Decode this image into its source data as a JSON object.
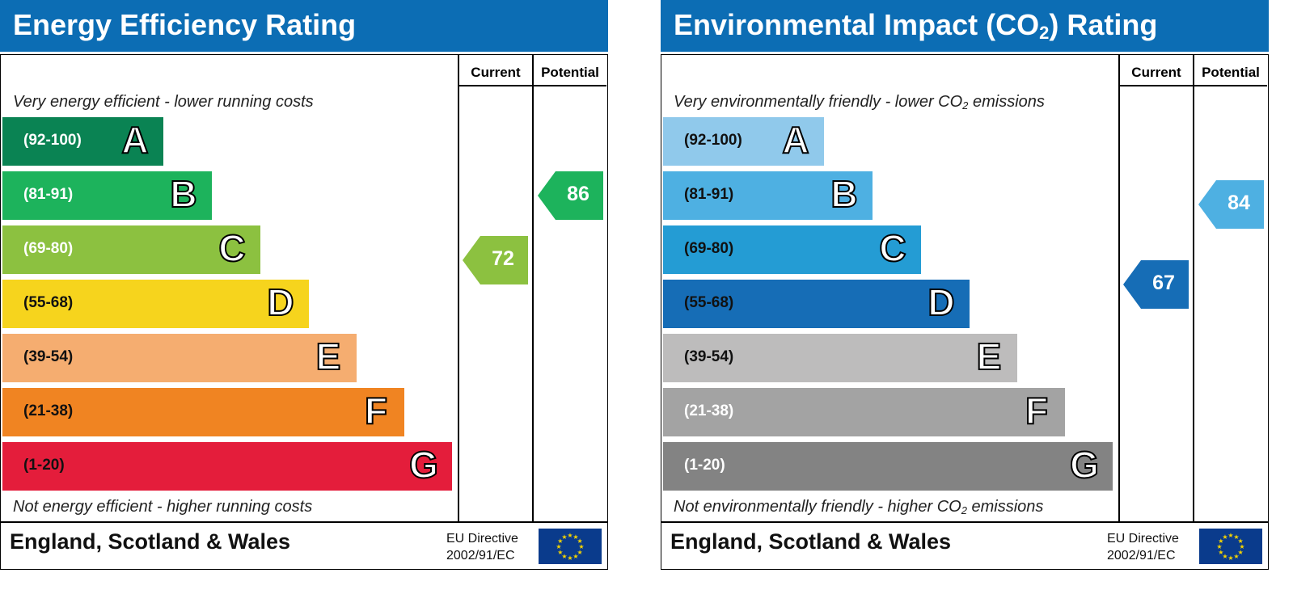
{
  "chart_data": [
    {
      "type": "bar",
      "title": "Energy Efficiency Rating",
      "columns": [
        "Current",
        "Potential"
      ],
      "top_note": "Very energy efficient - lower running costs",
      "bottom_note": "Not energy efficient - higher running costs",
      "bands": [
        {
          "letter": "A",
          "range": "(92-100)",
          "color": "#0a8353",
          "text_color": "#ffffff"
        },
        {
          "letter": "B",
          "range": "(81-91)",
          "color": "#1db35c",
          "text_color": "#ffffff"
        },
        {
          "letter": "C",
          "range": "(69-80)",
          "color": "#8cc140",
          "text_color": "#ffffff"
        },
        {
          "letter": "D",
          "range": "(55-68)",
          "color": "#f6d41d",
          "text_color": "#111111"
        },
        {
          "letter": "E",
          "range": "(39-54)",
          "color": "#f5ad70",
          "text_color": "#111111"
        },
        {
          "letter": "F",
          "range": "(21-38)",
          "color": "#f08422",
          "text_color": "#111111"
        },
        {
          "letter": "G",
          "range": "(1-20)",
          "color": "#e41d3b",
          "text_color": "#111111"
        }
      ],
      "current": {
        "value": 72,
        "band": "C",
        "color": "#8cc140"
      },
      "potential": {
        "value": 86,
        "band": "B",
        "color": "#1db35c"
      },
      "footer": "England, Scotland & Wales",
      "directive_line1": "EU Directive",
      "directive_line2": "2002/91/EC"
    },
    {
      "type": "bar",
      "title": "Environmental Impact (CO",
      "title_sub": "2",
      "title_suffix": ") Rating",
      "columns": [
        "Current",
        "Potential"
      ],
      "top_note": "Very environmentally friendly - lower CO",
      "top_note_sub": "2",
      "top_note_suffix": " emissions",
      "bottom_note": "Not environmentally friendly - higher CO",
      "bottom_note_sub": "2",
      "bottom_note_suffix": " emissions",
      "bands": [
        {
          "letter": "A",
          "range": "(92-100)",
          "color": "#90c9eb",
          "text_color": "#111111"
        },
        {
          "letter": "B",
          "range": "(81-91)",
          "color": "#4eb0e2",
          "text_color": "#111111"
        },
        {
          "letter": "C",
          "range": "(69-80)",
          "color": "#249cd4",
          "text_color": "#111111"
        },
        {
          "letter": "D",
          "range": "(55-68)",
          "color": "#166db6",
          "text_color": "#111111"
        },
        {
          "letter": "E",
          "range": "(39-54)",
          "color": "#bdbcbc",
          "text_color": "#111111"
        },
        {
          "letter": "F",
          "range": "(21-38)",
          "color": "#a3a3a3",
          "text_color": "#ffffff"
        },
        {
          "letter": "G",
          "range": "(1-20)",
          "color": "#838383",
          "text_color": "#ffffff"
        }
      ],
      "current": {
        "value": 67,
        "band": "D",
        "color": "#166db6"
      },
      "potential": {
        "value": 84,
        "band": "B",
        "color": "#4eb0e2"
      },
      "footer": "England, Scotland & Wales",
      "directive_line1": "EU Directive",
      "directive_line2": "2002/91/EC"
    }
  ],
  "icons": {
    "eu_flag": "eu-flag-icon",
    "flag_color": "#0a3b8c",
    "star_color": "#f5d400"
  }
}
